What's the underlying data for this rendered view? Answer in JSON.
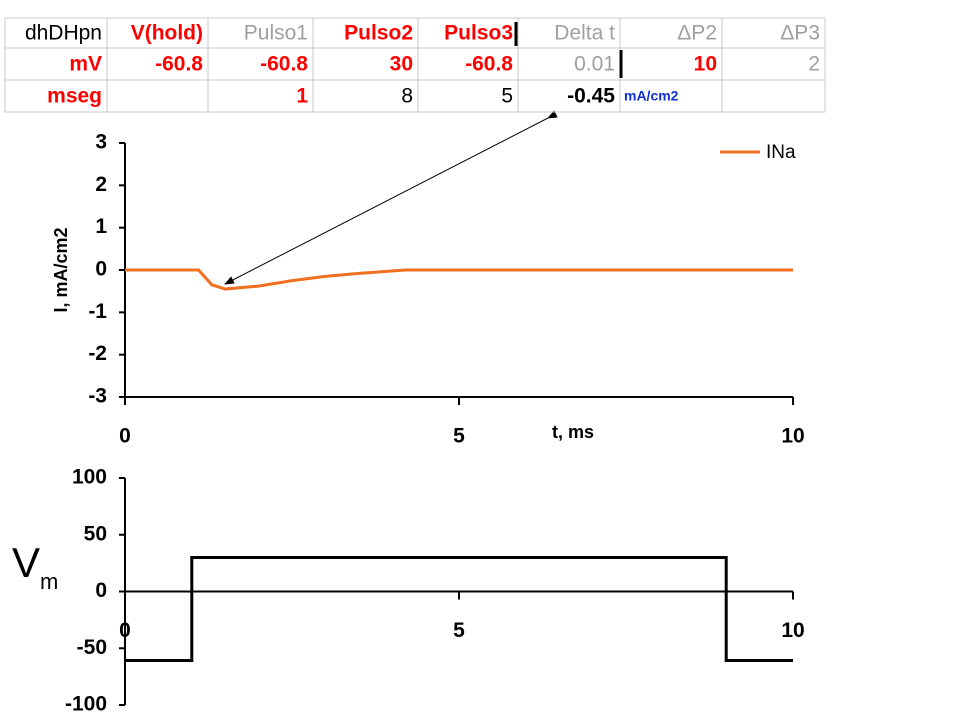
{
  "table": {
    "rows": [
      [
        "dhDHpn",
        "V(hold)",
        "Pulso1",
        "Pulso2",
        "Pulso3",
        "Delta t",
        "ΔP2",
        "ΔP3"
      ],
      [
        "mV",
        -60.8,
        -60.8,
        30,
        -60.8,
        0.01,
        10,
        2
      ],
      [
        "mseg",
        null,
        1,
        8,
        5,
        -0.45,
        "mA/cm2",
        null
      ]
    ]
  },
  "chart_data": [
    {
      "type": "line",
      "xlabel": "t, ms",
      "ylabel": "I, mA/cm2",
      "x": [
        0,
        1.1,
        1.3,
        1.5,
        2,
        2.5,
        3,
        3.5,
        4.2,
        5,
        10
      ],
      "series": [
        {
          "name": "INa",
          "color": "#f07020",
          "values": [
            0,
            0,
            -0.35,
            -0.45,
            -0.38,
            -0.25,
            -0.15,
            -0.08,
            0,
            0,
            0
          ]
        }
      ],
      "xlim": [
        0,
        10
      ],
      "ylim": [
        -3,
        3
      ],
      "xticks": [
        0,
        5,
        10
      ],
      "yticks": [
        -3,
        -2,
        -1,
        0,
        1,
        2,
        3
      ],
      "x_axis_position": "bottom",
      "legend": "top-right"
    },
    {
      "type": "line",
      "ylabel": "V",
      "ylabel_sub": "m",
      "x": [
        0,
        1,
        1,
        9,
        9,
        10
      ],
      "series": [
        {
          "color": "#000000",
          "values": [
            -60.8,
            -60.8,
            30,
            30,
            -60.8,
            -60.8
          ]
        }
      ],
      "xlim": [
        0,
        10
      ],
      "ylim": [
        -100,
        100
      ],
      "xticks": [
        0,
        5,
        10
      ],
      "yticks": [
        -100,
        -50,
        0,
        50,
        100
      ],
      "x_axis_position": "zero"
    }
  ]
}
